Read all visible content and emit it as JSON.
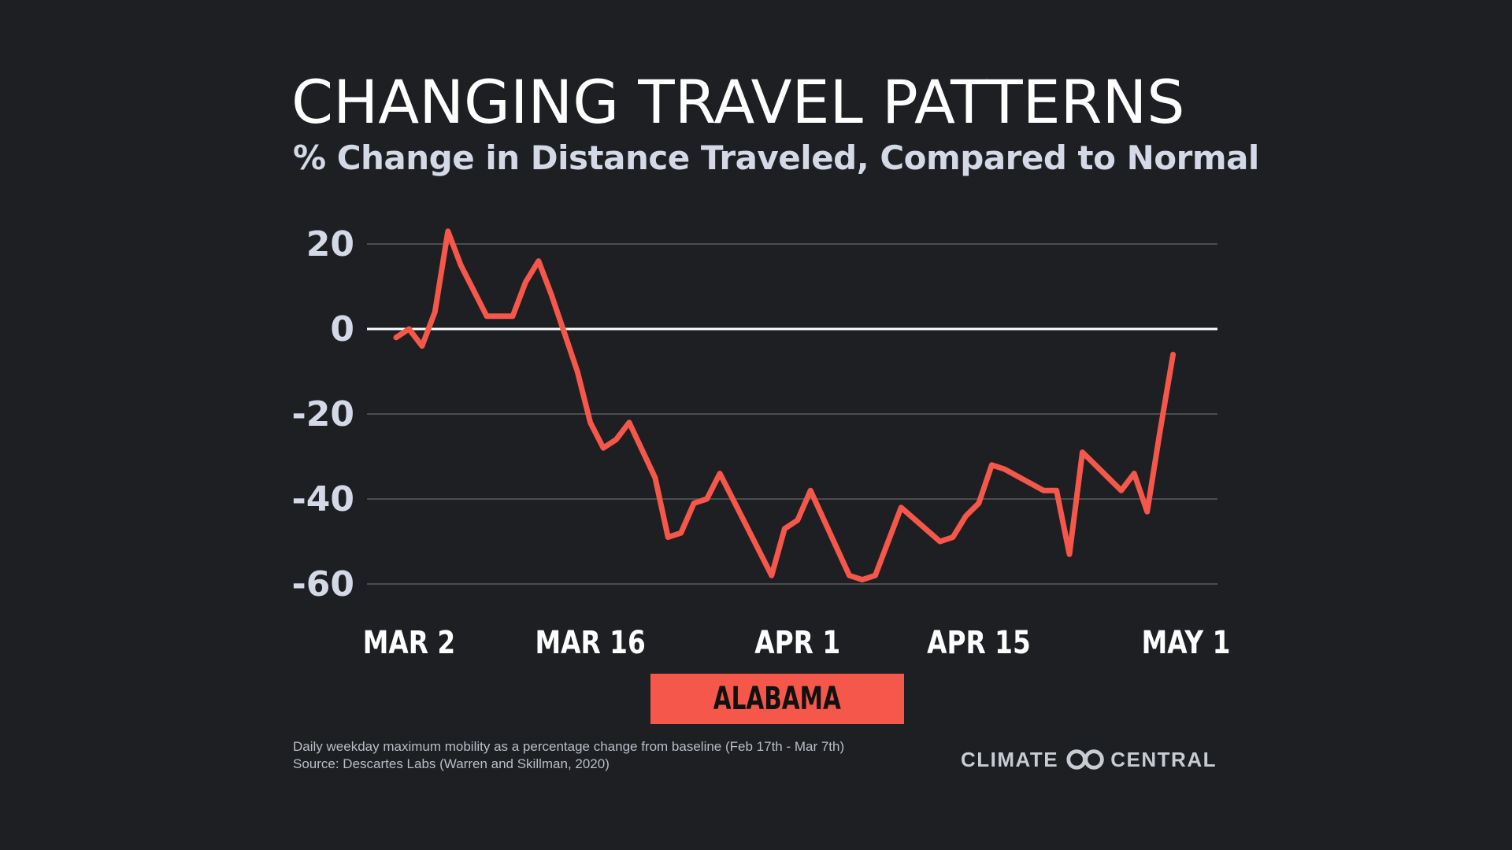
{
  "header": {
    "title": "CHANGING TRAVEL PATTERNS",
    "subtitle": "% Change in Distance Traveled, Compared to Normal"
  },
  "badge": {
    "label": "ALABAMA"
  },
  "footnote": {
    "line1": "Daily weekday maximum mobility as a percentage change from baseline (Feb 17th - Mar 7th)",
    "line2": "Source: Descartes Labs (Warren and Skillman, 2020)"
  },
  "logo": {
    "left_word": "CLIMATE",
    "right_word": "CENTRAL",
    "icon": "climate-central-logo-icon"
  },
  "colors": {
    "background": "#1e1f22",
    "line": "#f5574a",
    "grid": "#5a5c60",
    "zero_line": "#ffffff",
    "tick_text": "#d3d9e6",
    "badge": "#f5574a"
  },
  "chart_data": {
    "type": "line",
    "title": "",
    "xlabel": "",
    "ylabel": "",
    "ylim": [
      -60,
      20
    ],
    "y_ticks": [
      20,
      0,
      -20,
      -40,
      -60
    ],
    "y_tick_labels": [
      "20",
      "0",
      "-20",
      "-40",
      "-60"
    ],
    "x_ticks": [
      {
        "label": "MAR 2",
        "day": 1
      },
      {
        "label": "MAR 16",
        "day": 15
      },
      {
        "label": "APR 1",
        "day": 31
      },
      {
        "label": "APR 15",
        "day": 45
      },
      {
        "label": "MAY 1",
        "day": 61
      }
    ],
    "grid": true,
    "series": [
      {
        "values": [
          [
            0,
            -2
          ],
          [
            1,
            0
          ],
          [
            2,
            -4
          ],
          [
            3,
            4
          ],
          [
            4,
            23
          ],
          [
            5,
            15
          ],
          [
            7,
            3
          ],
          [
            9,
            3
          ],
          [
            10,
            11
          ],
          [
            11,
            16
          ],
          [
            12,
            8
          ],
          [
            13,
            -1
          ],
          [
            14,
            -10
          ],
          [
            15,
            -22
          ],
          [
            16,
            -28
          ],
          [
            17,
            -26
          ],
          [
            18,
            -22
          ],
          [
            20,
            -35
          ],
          [
            21,
            -49
          ],
          [
            22,
            -48
          ],
          [
            23,
            -41
          ],
          [
            24,
            -40
          ],
          [
            25,
            -34
          ],
          [
            27,
            -46
          ],
          [
            29,
            -58
          ],
          [
            30,
            -47
          ],
          [
            31,
            -45
          ],
          [
            32,
            -38
          ],
          [
            35,
            -58
          ],
          [
            36,
            -59
          ],
          [
            37,
            -58
          ],
          [
            39,
            -42
          ],
          [
            42,
            -50
          ],
          [
            43,
            -49
          ],
          [
            44,
            -44
          ],
          [
            45,
            -41
          ],
          [
            46,
            -32
          ],
          [
            47,
            -33
          ],
          [
            50,
            -38
          ],
          [
            51,
            -38
          ],
          [
            52,
            -53
          ],
          [
            53,
            -29
          ],
          [
            56,
            -38
          ],
          [
            57,
            -34
          ],
          [
            58,
            -43
          ],
          [
            59,
            -24
          ],
          [
            60,
            -6
          ]
        ]
      }
    ]
  }
}
